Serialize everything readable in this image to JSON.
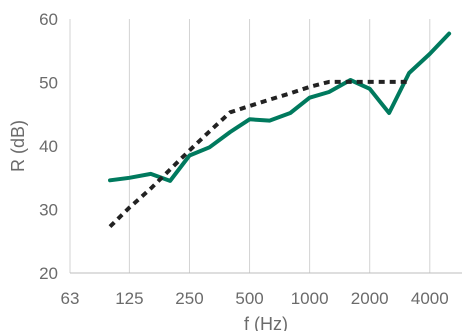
{
  "chart_data": {
    "type": "line",
    "xlabel": "f (Hz)",
    "ylabel": "R (dB)",
    "x_scale": "log",
    "ylim": [
      20,
      60
    ],
    "yticks": [
      20,
      30,
      40,
      50,
      60
    ],
    "xticks": [
      63,
      125,
      250,
      500,
      1000,
      2000,
      4000
    ],
    "xtick_labels": [
      "63",
      "125",
      "250",
      "500",
      "1000",
      "2000",
      "4000"
    ],
    "grid": "vertical",
    "series": [
      {
        "style": "solid",
        "color": "#007a5e",
        "x": [
          100,
          125,
          160,
          200,
          250,
          315,
          400,
          500,
          630,
          800,
          1000,
          1250,
          1600,
          2000,
          2500,
          3150,
          4000,
          5000
        ],
        "y": [
          34.6,
          35.0,
          35.6,
          34.5,
          38.5,
          39.8,
          42.2,
          44.2,
          44.0,
          45.2,
          47.6,
          48.5,
          50.4,
          49.0,
          45.2,
          51.5,
          54.5,
          57.7
        ]
      },
      {
        "style": "dotted",
        "color": "#222222",
        "x": [
          100,
          125,
          160,
          200,
          250,
          315,
          400,
          500,
          630,
          800,
          1000,
          1250,
          1600,
          2000,
          2500,
          3150
        ],
        "y": [
          27.3,
          30.3,
          33.3,
          36.3,
          39.3,
          42.3,
          45.3,
          46.3,
          47.3,
          48.3,
          49.3,
          50.1,
          50.1,
          50.1,
          50.1,
          50.1
        ]
      }
    ]
  }
}
